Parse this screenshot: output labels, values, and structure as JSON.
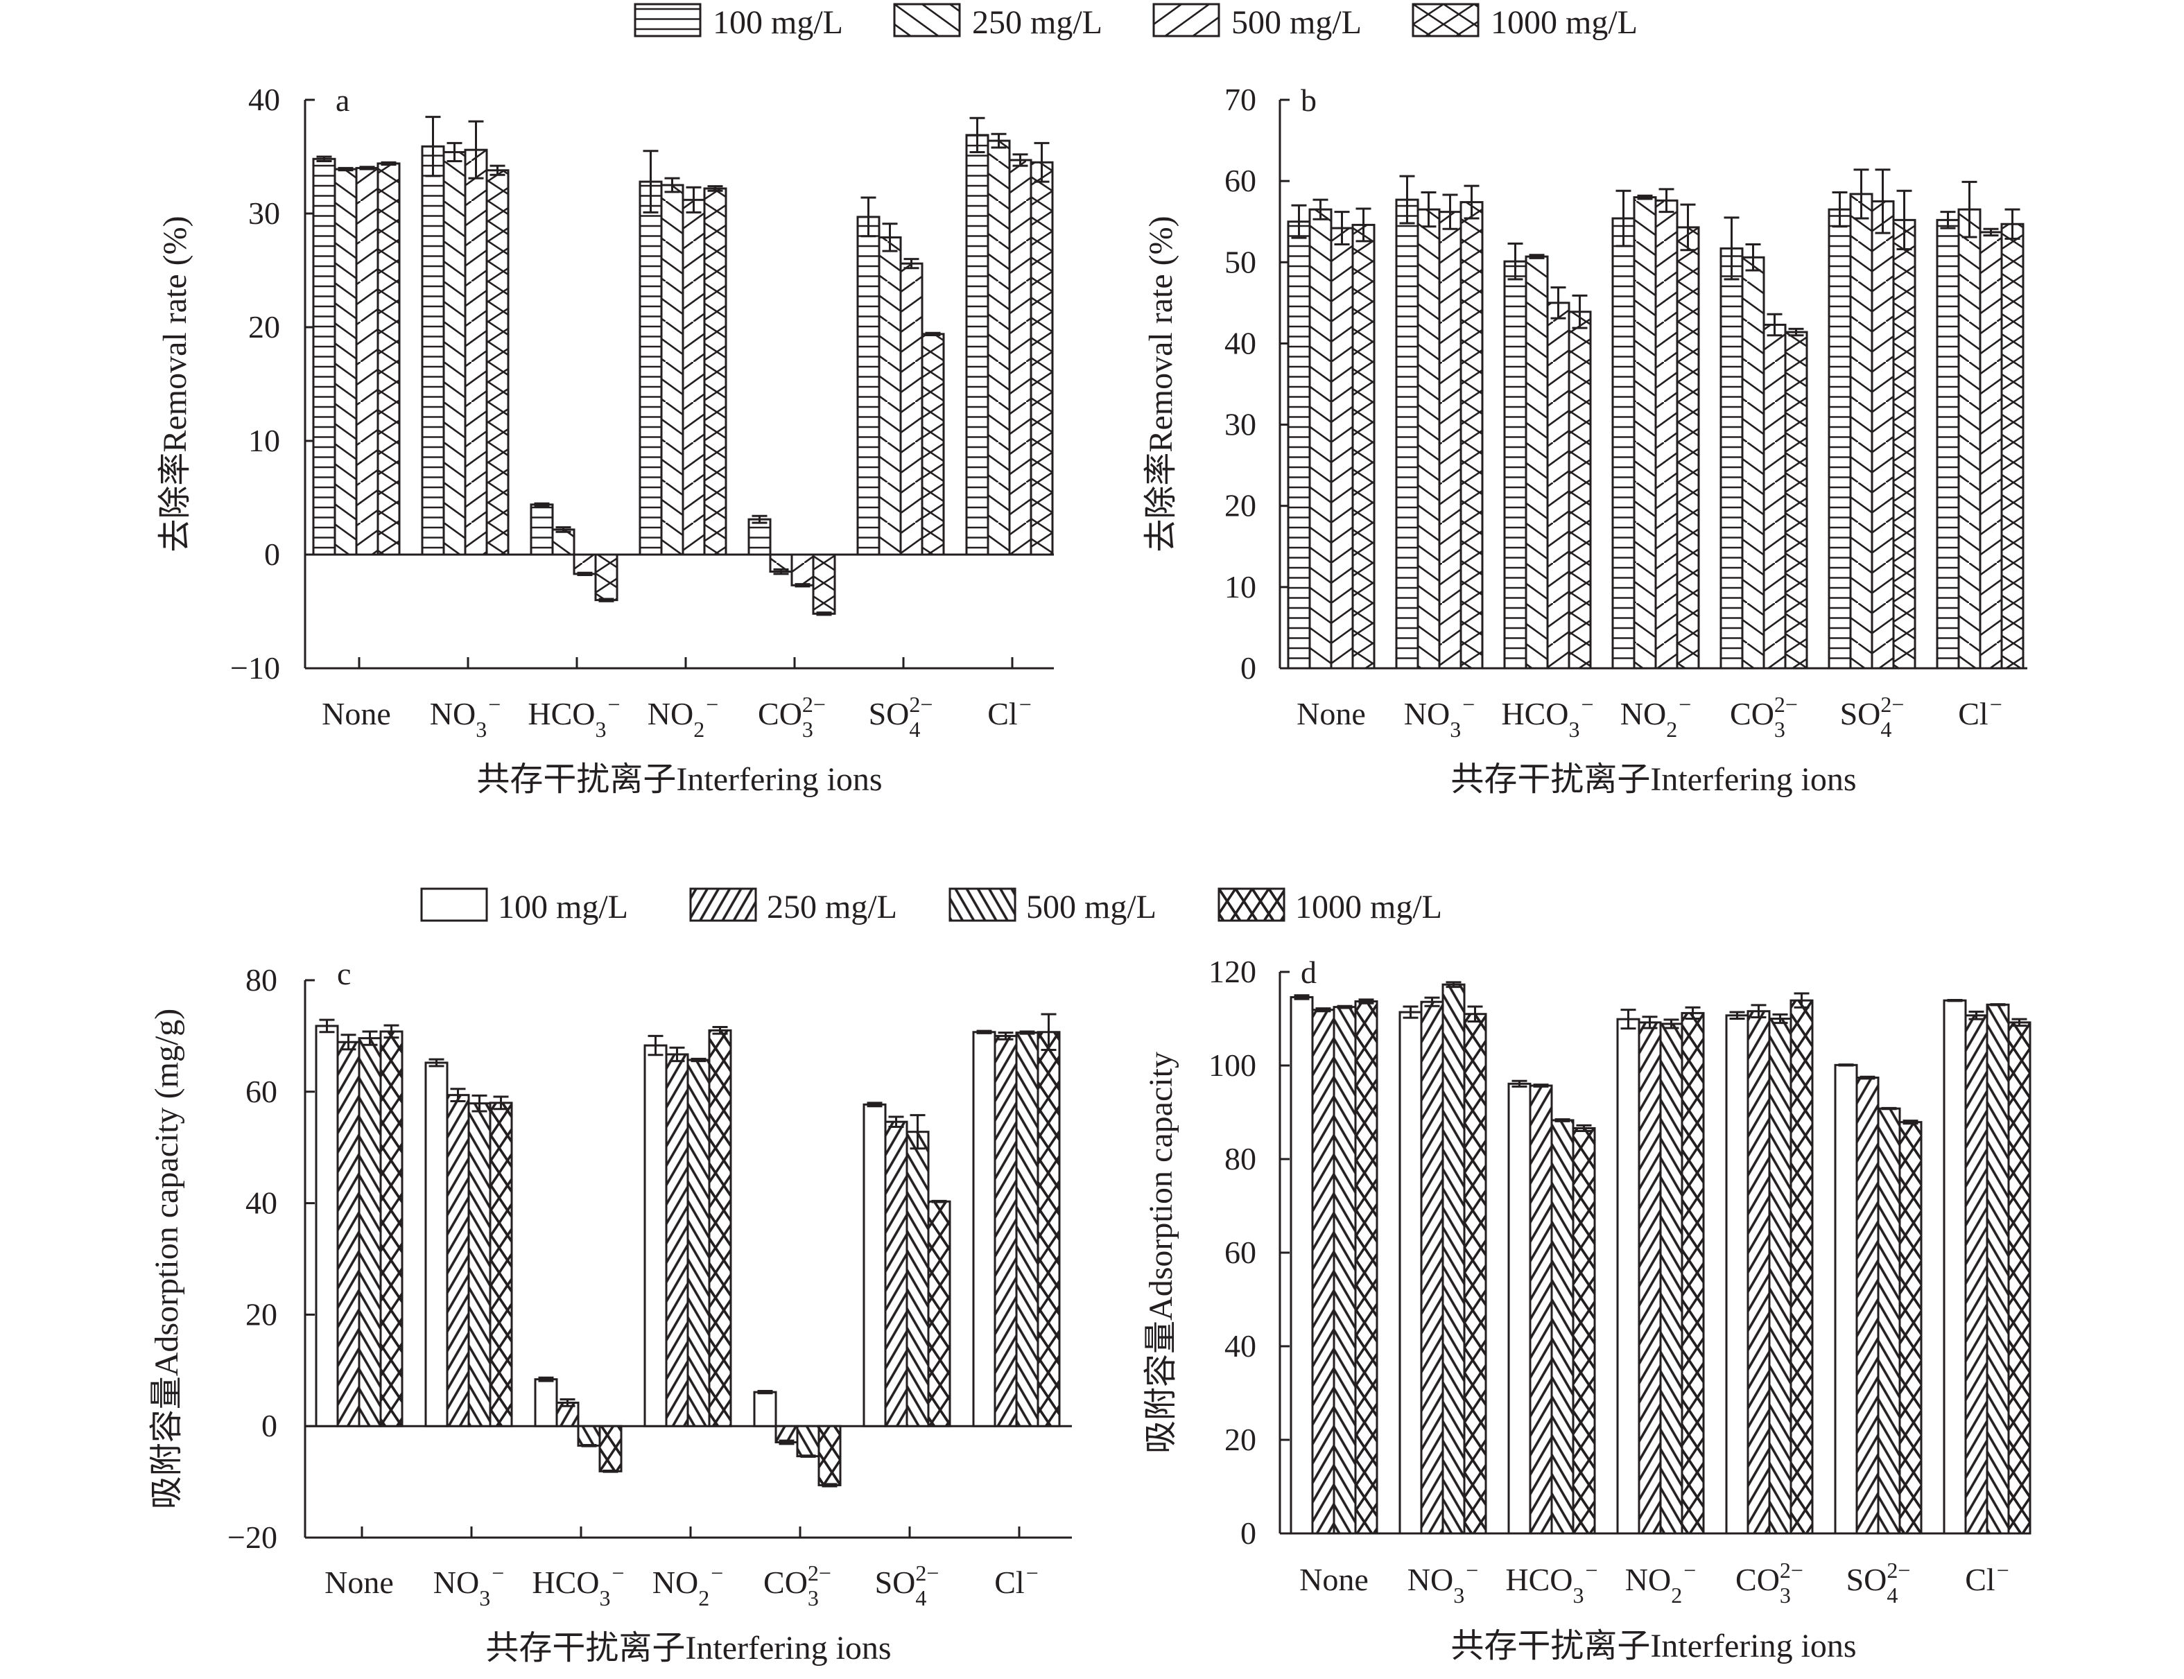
{
  "figure": {
    "legend_top": {
      "entries": [
        {
          "label": "100 mg/L",
          "pattern": "horizontal-lines"
        },
        {
          "label": "250 mg/L",
          "pattern": "backslash-sparse"
        },
        {
          "label": "500 mg/L",
          "pattern": "slash-sparse"
        },
        {
          "label": "1000 mg/L",
          "pattern": "cross-sparse"
        }
      ]
    },
    "legend_bottom": {
      "entries": [
        {
          "label": "100 mg/L",
          "pattern": "empty"
        },
        {
          "label": "250 mg/L",
          "pattern": "slash-dense"
        },
        {
          "label": "500 mg/L",
          "pattern": "backslash-dense"
        },
        {
          "label": "1000 mg/L",
          "pattern": "cross-dense"
        }
      ]
    }
  },
  "chart_data": [
    {
      "panel": "a",
      "type": "bar",
      "title": "",
      "xlabel": "共存干扰离子Interfering ions",
      "ylabel": "去除率Removal rate (%)",
      "ylim": [
        -10,
        40
      ],
      "yticks": [
        -10,
        0,
        10,
        20,
        30,
        40
      ],
      "ytick_labels": [
        "−10",
        "0",
        "10",
        "20",
        "30",
        "40"
      ],
      "grid": false,
      "legend": "top-center",
      "categories": [
        {
          "base": "None",
          "sub": "",
          "sup": ""
        },
        {
          "base": "NO",
          "sub": "3",
          "sup": "−"
        },
        {
          "base": "HCO",
          "sub": "3",
          "sup": "−"
        },
        {
          "base": "NO",
          "sub": "2",
          "sup": "−"
        },
        {
          "base": "CO",
          "sub": "3",
          "sup": "2−"
        },
        {
          "base": "SO",
          "sub": "4",
          "sup": "2−"
        },
        {
          "base": "Cl",
          "sub": "",
          "sup": "−"
        }
      ],
      "series": [
        {
          "name": "100 mg/L",
          "pattern": "horizontal-lines",
          "values": [
            34.8,
            35.9,
            4.4,
            32.8,
            3.1,
            29.7,
            36.9
          ],
          "errors": [
            0.2,
            2.6,
            0.1,
            2.7,
            0.3,
            1.7,
            1.5
          ]
        },
        {
          "name": "250 mg/L",
          "pattern": "backslash-sparse",
          "values": [
            33.9,
            35.4,
            2.2,
            32.5,
            -1.5,
            27.9,
            36.4
          ],
          "errors": [
            0.1,
            0.8,
            0.2,
            0.6,
            0.2,
            1.2,
            0.6
          ]
        },
        {
          "name": "500 mg/L",
          "pattern": "slash-sparse",
          "values": [
            34.0,
            35.6,
            -1.7,
            31.2,
            -2.7,
            25.6,
            34.7
          ],
          "errors": [
            0.1,
            2.5,
            0.1,
            1.1,
            0.1,
            0.4,
            0.5
          ]
        },
        {
          "name": "1000 mg/L",
          "pattern": "cross-sparse",
          "values": [
            34.4,
            33.8,
            -4.0,
            32.2,
            -5.2,
            19.4,
            34.5
          ],
          "errors": [
            0.1,
            0.4,
            0.1,
            0.2,
            0.1,
            0.1,
            1.7
          ]
        }
      ]
    },
    {
      "panel": "b",
      "type": "bar",
      "title": "",
      "xlabel": "共存干扰离子Interfering ions",
      "ylabel": "去除率Removal rate (%)",
      "ylim": [
        0,
        70
      ],
      "yticks": [
        0,
        10,
        20,
        30,
        40,
        50,
        60,
        70
      ],
      "ytick_labels": [
        "0",
        "10",
        "20",
        "30",
        "40",
        "50",
        "60",
        "70"
      ],
      "grid": false,
      "legend": "top-center",
      "categories": [
        {
          "base": "None",
          "sub": "",
          "sup": ""
        },
        {
          "base": "NO",
          "sub": "3",
          "sup": "−"
        },
        {
          "base": "HCO",
          "sub": "3",
          "sup": "−"
        },
        {
          "base": "NO",
          "sub": "2",
          "sup": "−"
        },
        {
          "base": "CO",
          "sub": "3",
          "sup": "2−"
        },
        {
          "base": "SO",
          "sub": "4",
          "sup": "2−"
        },
        {
          "base": "Cl",
          "sub": "",
          "sup": "−"
        }
      ],
      "series": [
        {
          "name": "100 mg/L",
          "pattern": "horizontal-lines",
          "values": [
            55.0,
            57.7,
            50.1,
            55.4,
            51.7,
            56.5,
            55.2
          ],
          "errors": [
            2.0,
            2.9,
            2.2,
            3.4,
            3.8,
            2.1,
            1.0
          ]
        },
        {
          "name": "250 mg/L",
          "pattern": "backslash-sparse",
          "values": [
            56.5,
            56.5,
            50.7,
            58.0,
            50.6,
            58.4,
            56.5
          ],
          "errors": [
            1.2,
            2.1,
            0.2,
            0.2,
            1.6,
            3.0,
            3.4
          ]
        },
        {
          "name": "500 mg/L",
          "pattern": "slash-sparse",
          "values": [
            54.2,
            56.2,
            45.0,
            57.6,
            42.3,
            57.5,
            53.7
          ],
          "errors": [
            2.0,
            2.1,
            1.9,
            1.4,
            1.3,
            3.9,
            0.4
          ]
        },
        {
          "name": "1000 mg/L",
          "pattern": "cross-sparse",
          "values": [
            54.6,
            57.4,
            43.9,
            54.3,
            41.4,
            55.2,
            54.7
          ],
          "errors": [
            2.0,
            2.0,
            2.0,
            2.8,
            0.4,
            3.6,
            1.8
          ]
        }
      ]
    },
    {
      "panel": "c",
      "type": "bar",
      "title": "",
      "xlabel": "共存干扰离子Interfering ions",
      "ylabel": "吸附容量Adsorption capacity (mg/g)",
      "ylim": [
        -20,
        80
      ],
      "yticks": [
        -20,
        0,
        20,
        40,
        60,
        80
      ],
      "ytick_labels": [
        "−20",
        "0",
        "20",
        "40",
        "60",
        "80"
      ],
      "grid": false,
      "legend": "top-center",
      "categories": [
        {
          "base": "None",
          "sub": "",
          "sup": ""
        },
        {
          "base": "NO",
          "sub": "3",
          "sup": "−"
        },
        {
          "base": "HCO",
          "sub": "3",
          "sup": "−"
        },
        {
          "base": "NO",
          "sub": "2",
          "sup": "−"
        },
        {
          "base": "CO",
          "sub": "3",
          "sup": "2−"
        },
        {
          "base": "SO",
          "sub": "4",
          "sup": "2−"
        },
        {
          "base": "Cl",
          "sub": "",
          "sup": "−"
        }
      ],
      "series": [
        {
          "name": "100 mg/L",
          "pattern": "empty",
          "values": [
            71.8,
            65.2,
            8.4,
            68.3,
            6.1,
            57.7,
            70.7
          ],
          "errors": [
            1.1,
            0.6,
            0.3,
            1.7,
            0.2,
            0.3,
            0.2
          ]
        },
        {
          "name": "250 mg/L",
          "pattern": "slash-dense",
          "values": [
            68.9,
            59.4,
            4.2,
            66.7,
            -2.9,
            54.6,
            70.0
          ],
          "errors": [
            1.3,
            1.1,
            0.6,
            1.2,
            0.3,
            0.9,
            0.6
          ]
        },
        {
          "name": "500 mg/L",
          "pattern": "backslash-dense",
          "values": [
            69.6,
            57.9,
            -3.5,
            65.7,
            -5.4,
            52.8,
            70.6
          ],
          "errors": [
            1.2,
            1.4,
            0.1,
            0.2,
            0.1,
            3.0,
            0.2
          ]
        },
        {
          "name": "1000 mg/L",
          "pattern": "cross-dense",
          "values": [
            70.8,
            58.0,
            -8.1,
            71.0,
            -10.6,
            40.3,
            70.7
          ],
          "errors": [
            1.1,
            1.1,
            0.1,
            0.6,
            0.2,
            0.1,
            3.2
          ]
        }
      ]
    },
    {
      "panel": "d",
      "type": "bar",
      "title": "",
      "xlabel": "共存干扰离子Interfering ions",
      "ylabel": "吸附容量Adsorption capacity",
      "ylim": [
        0,
        120
      ],
      "yticks": [
        0,
        20,
        40,
        60,
        80,
        100,
        120
      ],
      "ytick_labels": [
        "0",
        "20",
        "40",
        "60",
        "80",
        "100",
        "120"
      ],
      "grid": false,
      "legend": "top-center",
      "categories": [
        {
          "base": "None",
          "sub": "",
          "sup": ""
        },
        {
          "base": "NO",
          "sub": "3",
          "sup": "−"
        },
        {
          "base": "HCO",
          "sub": "3",
          "sup": "−"
        },
        {
          "base": "NO",
          "sub": "2",
          "sup": "−"
        },
        {
          "base": "CO",
          "sub": "3",
          "sup": "2−"
        },
        {
          "base": "SO",
          "sub": "4",
          "sup": "2−"
        },
        {
          "base": "Cl",
          "sub": "",
          "sup": "−"
        }
      ],
      "series": [
        {
          "name": "100 mg/L",
          "pattern": "empty",
          "values": [
            114.6,
            111.4,
            96.1,
            109.9,
            110.7,
            100.1,
            113.9
          ],
          "errors": [
            0.4,
            1.2,
            0.6,
            2.0,
            0.7,
            0.1,
            0.1
          ]
        },
        {
          "name": "250 mg/L",
          "pattern": "slash-dense",
          "values": [
            111.9,
            113.6,
            95.7,
            109.2,
            111.6,
            97.4,
            110.7
          ],
          "errors": [
            0.3,
            0.9,
            0.2,
            1.2,
            1.3,
            0.2,
            0.8
          ]
        },
        {
          "name": "500 mg/L",
          "pattern": "backslash-dense",
          "values": [
            112.5,
            117.3,
            88.3,
            108.9,
            110.0,
            90.8,
            113.0
          ],
          "errors": [
            0.2,
            0.5,
            0.2,
            0.9,
            0.9,
            0.1,
            0.1
          ]
        },
        {
          "name": "1000 mg/L",
          "pattern": "cross-dense",
          "values": [
            113.7,
            111.0,
            86.6,
            111.2,
            113.9,
            87.9,
            109.2
          ],
          "errors": [
            0.4,
            1.6,
            0.6,
            1.2,
            1.5,
            0.3,
            0.7
          ]
        }
      ]
    }
  ]
}
